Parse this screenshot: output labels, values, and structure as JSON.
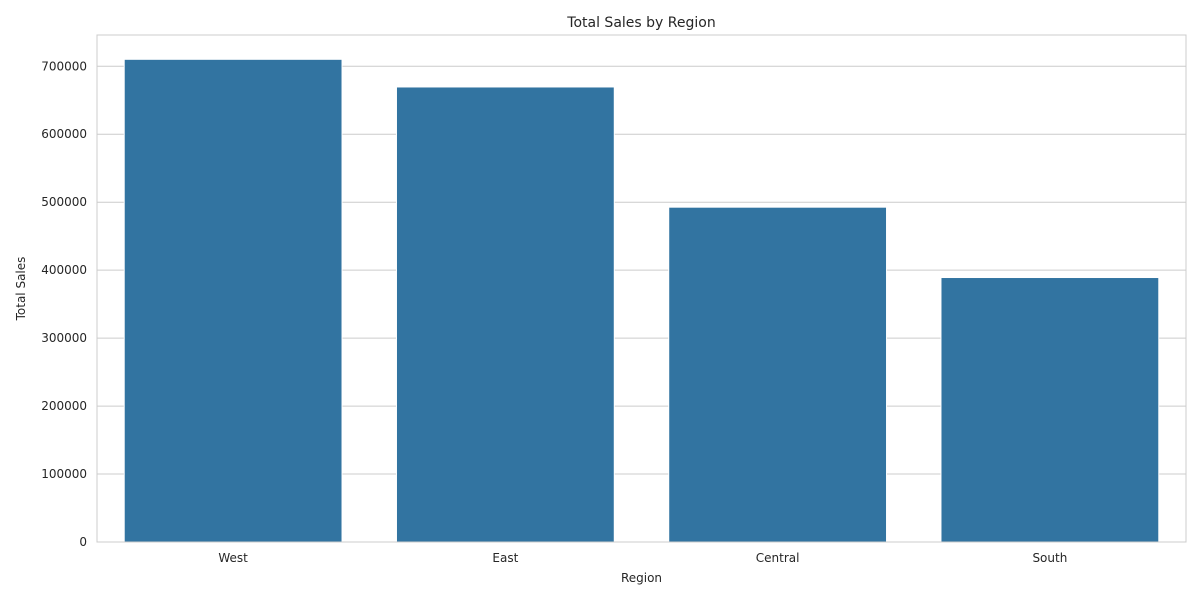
{
  "chart_data": {
    "type": "bar",
    "title": "Total Sales by Region",
    "xlabel": "Region",
    "ylabel": "Total Sales",
    "categories": [
      "West",
      "East",
      "Central",
      "South"
    ],
    "values": [
      710220,
      669519,
      492646,
      389151
    ],
    "ylim": [
      0,
      746000
    ],
    "yticks": [
      0,
      100000,
      200000,
      300000,
      400000,
      500000,
      600000,
      700000
    ],
    "ytick_labels": [
      "0",
      "100000",
      "200000",
      "300000",
      "400000",
      "500000",
      "600000",
      "700000"
    ],
    "grid": "horizontal",
    "bar_color": "#3274a1",
    "grid_color": "#cccccc"
  }
}
